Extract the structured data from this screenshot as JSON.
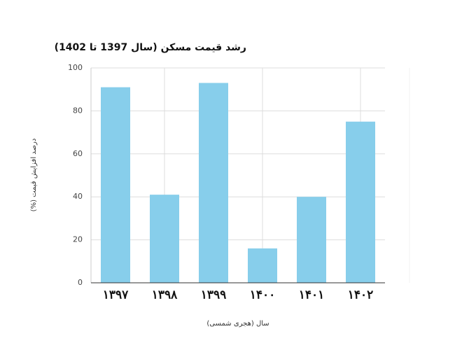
{
  "chart_data": {
    "type": "bar",
    "title": "رشد قیمت مسکن (سال 1397 تا 1402)",
    "x_label": "سال (هجری شمسی)",
    "y_label": "درصد افزایش قیمت (%)",
    "categories": [
      "۱۳۹۷",
      "۱۳۹۸",
      "۱۳۹۹",
      "۱۴۰۰",
      "۱۴۰۱",
      "۱۴۰۲"
    ],
    "values": [
      91,
      41,
      93,
      16,
      40,
      75
    ],
    "color": "#87ceeb",
    "ylim": [
      0,
      100
    ],
    "yticks": [
      0,
      20,
      40,
      60,
      80,
      100
    ],
    "grid": true
  }
}
